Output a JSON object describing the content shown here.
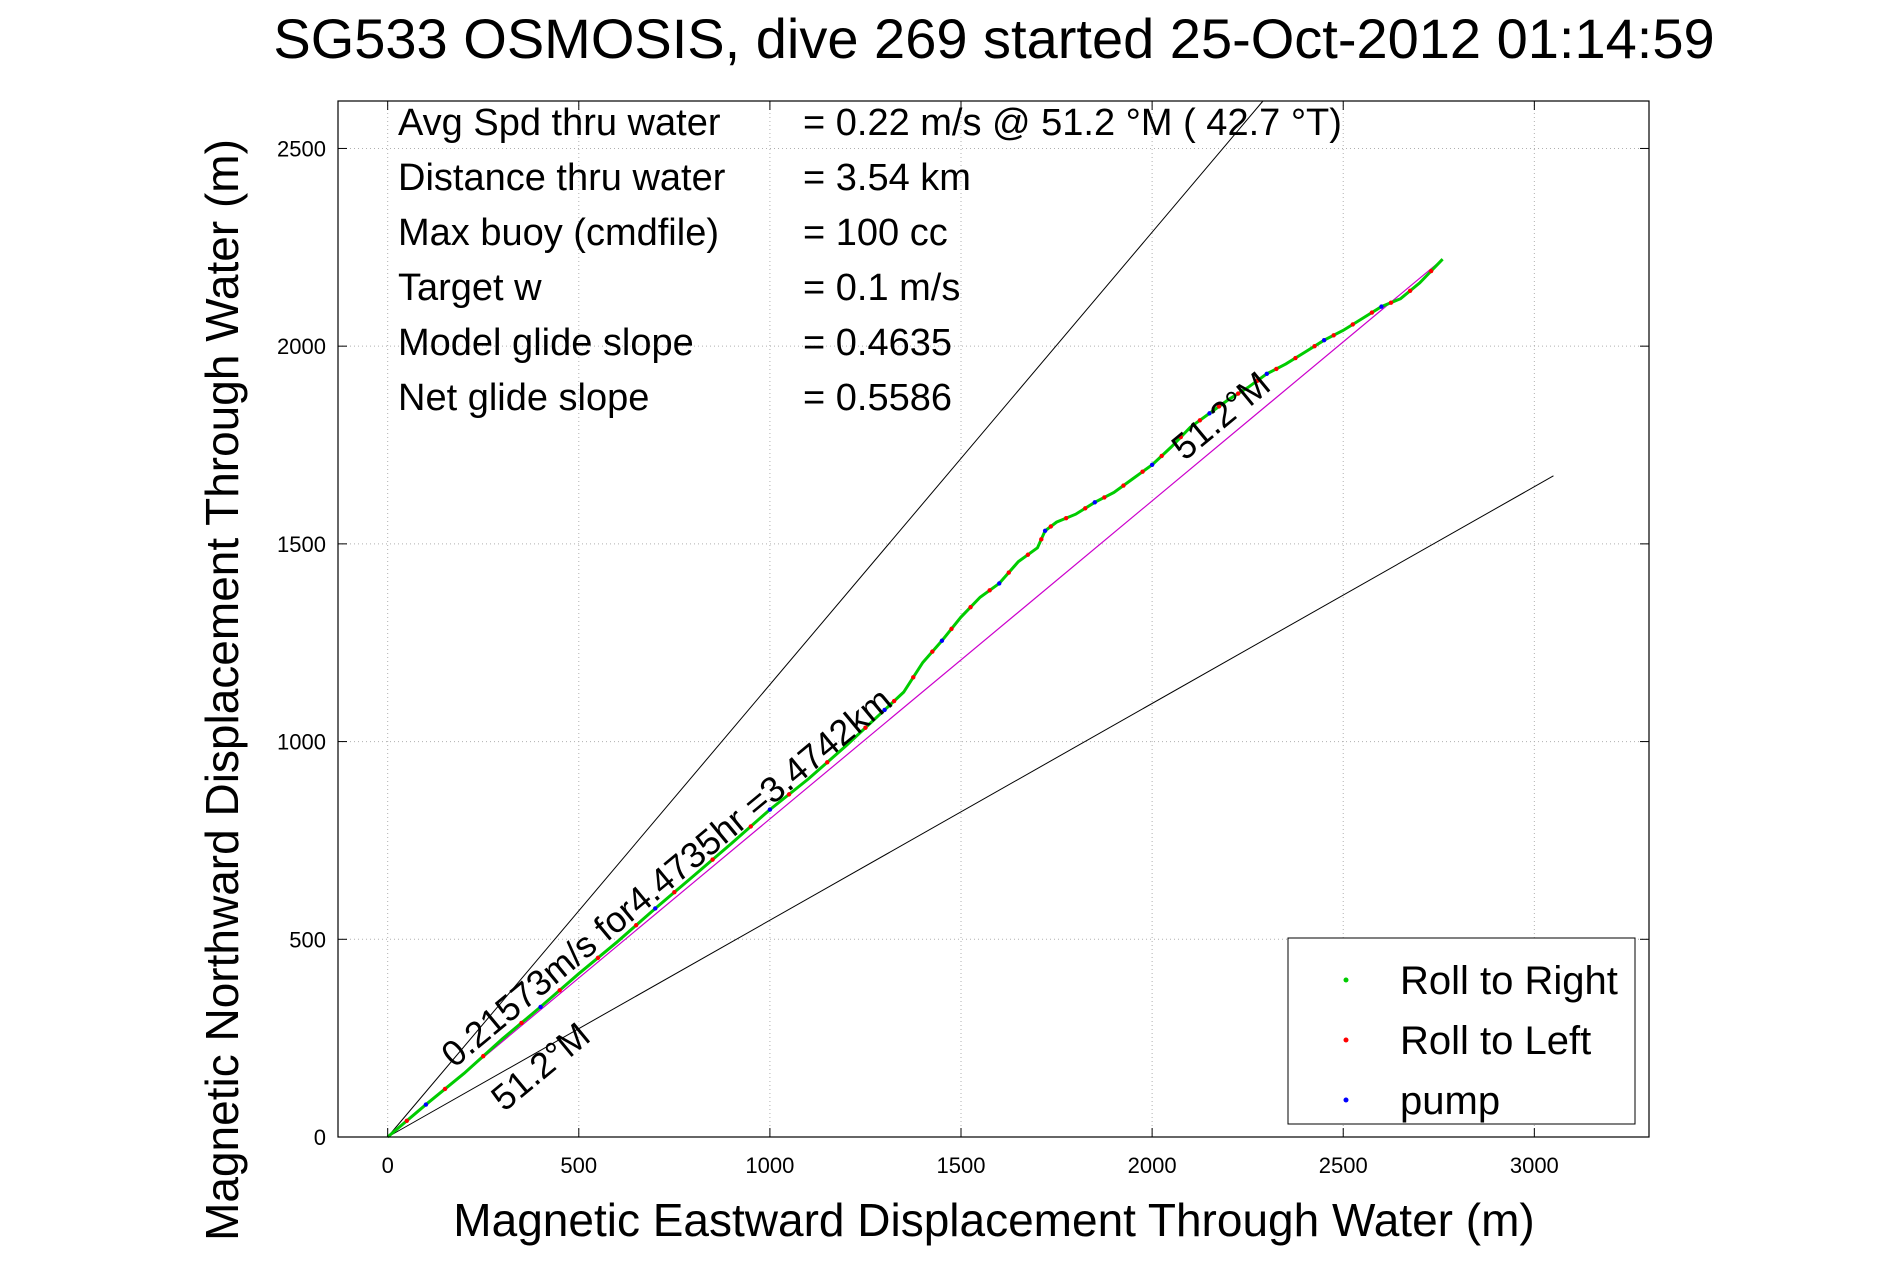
{
  "chart_data": {
    "type": "line",
    "title": "SG533 OSMOSIS, dive 269 started 25-Oct-2012 01:14:59",
    "xlabel": "Magnetic Eastward Displacement Through Water (m)",
    "ylabel": "Magnetic Northward Displacement Through Water (m)",
    "xlim": [
      -130,
      3300
    ],
    "ylim": [
      0,
      2620
    ],
    "xticks": [
      0,
      500,
      1000,
      1500,
      2000,
      2500,
      3000
    ],
    "yticks": [
      0,
      500,
      1000,
      1500,
      2000,
      2500
    ],
    "grid": true,
    "info": [
      {
        "label": "Avg Spd thru water",
        "value": "=  0.22 m/s @  51.2 °M ( 42.7 °T)"
      },
      {
        "label": "Distance thru water",
        "value": "=  3.54 km"
      },
      {
        "label": "Max buoy (cmdfile)",
        "value": "= 100 cc"
      },
      {
        "label": "Target w",
        "value": "= 0.1 m/s"
      },
      {
        "label": "Model glide slope",
        "value": "= 0.4635"
      },
      {
        "label": "Net glide slope",
        "value": "= 0.5586"
      }
    ],
    "annotations": {
      "speed": "0.21573m/s for4.4735hr =3.4742km",
      "heading_upper": "51.2°M",
      "heading_lower": "51.2°M"
    },
    "legend": {
      "placement": "bottom-right",
      "entries": [
        {
          "name": "Roll to Right",
          "color": "#00cc00"
        },
        {
          "name": "Roll to Left",
          "color": "#ff0000"
        },
        {
          "name": "pump",
          "color": "#0000ff"
        }
      ]
    },
    "reference_lines": [
      {
        "name": "upper-bound",
        "points": [
          [
            0,
            0
          ],
          [
            2290,
            2620
          ]
        ]
      },
      {
        "name": "lower-bound",
        "points": [
          [
            0,
            0
          ],
          [
            3050,
            1672
          ]
        ]
      },
      {
        "name": "net-heading",
        "points": [
          [
            0,
            0
          ],
          [
            2760,
            2220
          ]
        ]
      }
    ],
    "series": [
      {
        "x": [
          0,
          100,
          200,
          300,
          400,
          500,
          600,
          700,
          800,
          900,
          1000,
          1100,
          1200,
          1300,
          1350,
          1400,
          1450,
          1500,
          1550,
          1600,
          1650,
          1700,
          1720,
          1750,
          1800,
          1850,
          1900,
          1950,
          2000,
          2050,
          2100,
          2150,
          2200,
          2250,
          2300,
          2350,
          2400,
          2450,
          2500,
          2550,
          2600,
          2650,
          2700,
          2760
        ],
        "y": [
          0,
          82,
          161,
          248,
          329,
          413,
          493,
          578,
          660,
          743,
          828,
          905,
          990,
          1080,
          1125,
          1200,
          1255,
          1315,
          1365,
          1400,
          1455,
          1490,
          1533,
          1555,
          1575,
          1605,
          1630,
          1665,
          1700,
          1745,
          1795,
          1830,
          1865,
          1895,
          1930,
          1955,
          1985,
          2015,
          2040,
          2070,
          2100,
          2120,
          2160,
          2220
        ]
      }
    ]
  }
}
